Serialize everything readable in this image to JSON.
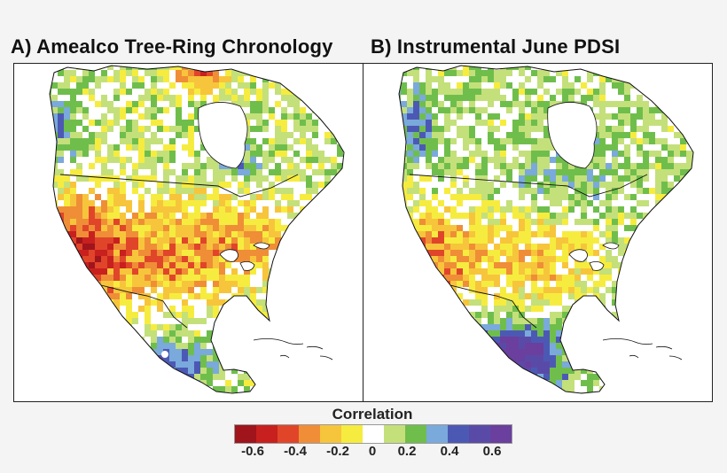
{
  "panels": [
    {
      "title": "A) Amealco Tree-Ring Chronology"
    },
    {
      "title": "B) Instrumental June PDSI"
    }
  ],
  "legend": {
    "title": "Correlation",
    "colors": [
      "#a0141c",
      "#c8201e",
      "#e0452a",
      "#ef8e37",
      "#f7c53b",
      "#f6ec3f",
      "#ffffff",
      "#c4e07a",
      "#6fbe4c",
      "#7aa9dc",
      "#4c59b4",
      "#5a4aa8",
      "#6a3f9e"
    ],
    "tick_labels": [
      "-0.6",
      "-0.4",
      "-0.2",
      "0",
      "0.2",
      "0.4",
      "0.6"
    ]
  },
  "site_marker": {
    "label_color": "#ffffff"
  }
}
